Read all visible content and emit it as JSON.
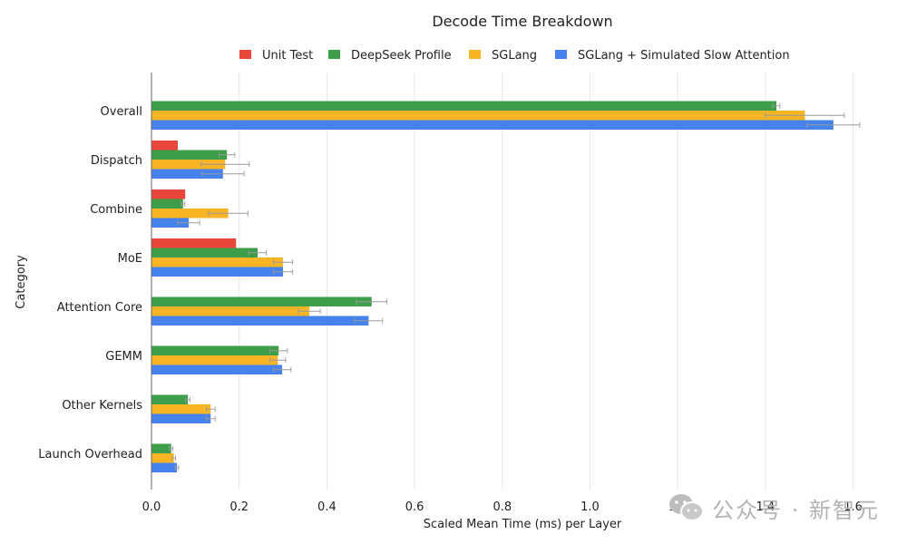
{
  "chart_data": {
    "type": "bar",
    "orientation": "horizontal",
    "title": "Decode Time Breakdown",
    "xlabel": "Scaled Mean Time (ms) per Layer",
    "ylabel": "Category",
    "xlim": [
      0,
      1.65
    ],
    "xticks": [
      0.0,
      0.2,
      0.4,
      0.6,
      0.8,
      1.0,
      1.2,
      1.4,
      1.6
    ],
    "xtick_labels": [
      "0.0",
      "0.2",
      "0.4",
      "0.6",
      "0.8",
      "1.0",
      "1.2",
      "1.4",
      "1.6"
    ],
    "grid": "vertical",
    "legend_position": "top",
    "categories": [
      "Overall",
      "Dispatch",
      "Combine",
      "MoE",
      "Attention Core",
      "GEMM",
      "Other Kernels",
      "Launch Overhead"
    ],
    "series": [
      {
        "name": "Unit Test",
        "color": "#e8463a",
        "values": [
          null,
          0.06,
          0.077,
          0.193,
          null,
          null,
          null,
          null
        ],
        "errors": [
          null,
          null,
          null,
          null,
          null,
          null,
          null,
          null
        ]
      },
      {
        "name": "DeepSeek Profile",
        "color": "#3d9e4a",
        "values": [
          1.425,
          0.172,
          0.072,
          0.242,
          0.502,
          0.29,
          0.083,
          0.045
        ],
        "errors": [
          0.008,
          0.018,
          0.004,
          0.02,
          0.035,
          0.02,
          0.005,
          0.004
        ]
      },
      {
        "name": "SGLang",
        "color": "#f7b424",
        "values": [
          1.49,
          0.168,
          0.175,
          0.3,
          0.36,
          0.288,
          0.135,
          0.051
        ],
        "errors": [
          0.09,
          0.055,
          0.045,
          0.022,
          0.025,
          0.018,
          0.01,
          0.004
        ]
      },
      {
        "name": "SGLang + Simulated Slow Attention",
        "color": "#4582ec",
        "values": [
          1.555,
          0.163,
          0.085,
          0.3,
          0.495,
          0.298,
          0.135,
          0.058
        ],
        "errors": [
          0.06,
          0.048,
          0.025,
          0.022,
          0.032,
          0.02,
          0.01,
          0.004
        ]
      }
    ]
  },
  "watermark": {
    "icon": "wechat-icon",
    "text": "公众号 · 新智元"
  }
}
